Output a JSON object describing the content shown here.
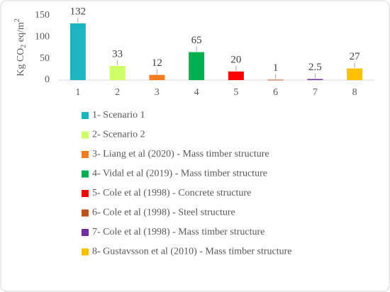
{
  "chart_data": {
    "type": "bar",
    "y_label": {
      "main": "Kg CO",
      "sub": "2",
      "mid": " eq/m",
      "sup": "2"
    },
    "categories": [
      "1",
      "2",
      "3",
      "4",
      "5",
      "6",
      "7",
      "8"
    ],
    "values": [
      132,
      33,
      12,
      65,
      20,
      1,
      2.5,
      27
    ],
    "colors": [
      "#1cb5c0",
      "#ccff66",
      "#f47c20",
      "#00b050",
      "#ff0000",
      "#c0501e",
      "#7030a0",
      "#ffc000"
    ],
    "legend": [
      "1- Scenario 1",
      "2- Scenario 2",
      "3- Liang et al (2020) - Mass timber structure",
      "4- Vidal et al (2019) - Mass timber structure",
      "5- Cole et al (1998) - Concrete structure",
      "6- Cole et al (1998) - Steel structure",
      "7- Cole et al (1998) - Mass timber structure",
      "8- Gustavsson et al (2010) - Mass timber structure"
    ],
    "ylim": [
      0,
      150
    ],
    "yticks": [
      0,
      50,
      100,
      150
    ],
    "grid": false
  }
}
